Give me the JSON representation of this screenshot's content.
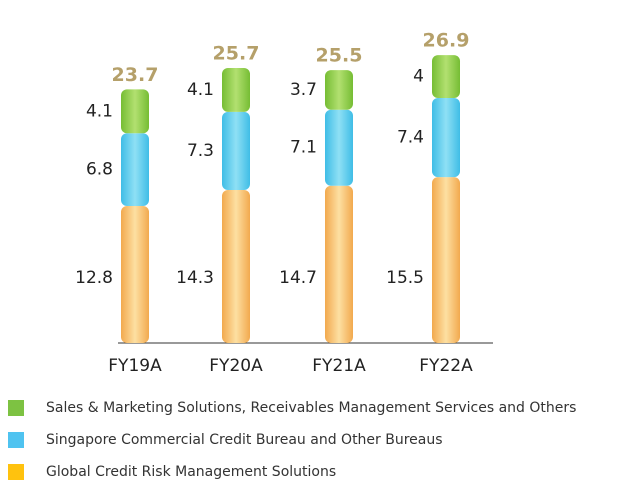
{
  "chart_data": {
    "type": "stacked_bar",
    "categories": [
      "FY19A",
      "FY20A",
      "FY21A",
      "FY22A"
    ],
    "series": [
      {
        "name": "Global Credit Risk Management Solutions",
        "color": "#ffc20e",
        "values": [
          12.8,
          14.3,
          14.7,
          15.5
        ]
      },
      {
        "name": "Singapore Commercial Credit Bureau and Other Bureaus",
        "color": "#4fc3f0",
        "values": [
          6.8,
          7.3,
          7.1,
          7.4
        ]
      },
      {
        "name": "Sales & Marketing Solutions, Receivables Management Services and Others",
        "color": "#7dc242",
        "values": [
          4.1,
          4.1,
          3.7,
          4.0
        ]
      }
    ],
    "totals": [
      23.7,
      25.7,
      25.5,
      26.9
    ]
  }
}
